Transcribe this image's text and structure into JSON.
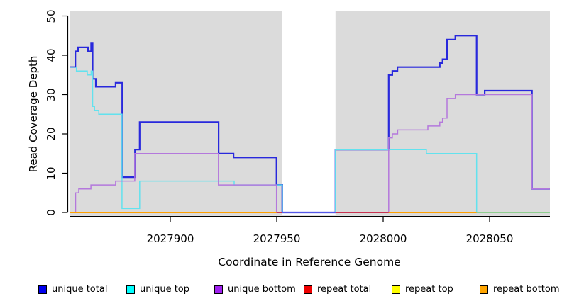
{
  "chart_data": {
    "type": "line",
    "subtype": "step-coverage-plot",
    "title": "",
    "xlabel": "Coordinate in Reference Genome",
    "ylabel": "Read Coverage Depth",
    "xlim": [
      2027852.7,
      2028078.3
    ],
    "ylim": [
      0,
      50
    ],
    "x_ticks": [
      2027900,
      2027950,
      2028000,
      2028050
    ],
    "x_tick_labels": [
      "2027900",
      "2027950",
      "2028000",
      "2028050"
    ],
    "y_ticks": [
      0,
      10,
      20,
      30,
      40,
      50
    ],
    "y_tick_labels": [
      "0",
      "10",
      "20",
      "30",
      "40",
      "50"
    ],
    "plot_bg": "#DBDBDB",
    "grid": false,
    "legend_position": "bottom",
    "masked_region": {
      "x0": 2027952.5,
      "x1": 2027977.6
    },
    "series": [
      {
        "name": "unique total",
        "color": "#2828DC",
        "width": 2.2,
        "steps": [
          [
            2027852.7,
            37
          ],
          [
            2027855.4,
            41
          ],
          [
            2027856.7,
            42
          ],
          [
            2027861.3,
            41
          ],
          [
            2027862.8,
            43
          ],
          [
            2027863.5,
            34
          ],
          [
            2027865,
            32
          ],
          [
            2027874.3,
            33
          ],
          [
            2027877.4,
            9
          ],
          [
            2027883.4,
            16
          ],
          [
            2027885.6,
            23
          ],
          [
            2027922.7,
            15
          ],
          [
            2027929.7,
            14
          ],
          [
            2027949.9,
            7
          ],
          [
            2027952.6,
            0
          ],
          [
            2027977.6,
            16
          ],
          [
            2028002.6,
            35
          ],
          [
            2028004.3,
            36
          ],
          [
            2028006.7,
            37
          ],
          [
            2028026.6,
            38
          ],
          [
            2028027.9,
            39
          ],
          [
            2028030,
            44
          ],
          [
            2028033.9,
            45
          ],
          [
            2028043.9,
            30
          ],
          [
            2028047.7,
            31
          ],
          [
            2028069.9,
            6
          ]
        ]
      },
      {
        "name": "unique top",
        "color": "#62E2EE",
        "width": 1.5,
        "steps": [
          [
            2027852.7,
            37
          ],
          [
            2027855.9,
            36
          ],
          [
            2027861,
            35
          ],
          [
            2027862.8,
            36
          ],
          [
            2027863.5,
            27
          ],
          [
            2027864.4,
            26
          ],
          [
            2027866.4,
            25
          ],
          [
            2027877.3,
            1
          ],
          [
            2027885.6,
            8
          ],
          [
            2027930,
            7
          ],
          [
            2027952.6,
            0
          ],
          [
            2027977.6,
            16
          ],
          [
            2028020.3,
            15
          ],
          [
            2028043.9,
            0
          ]
        ]
      },
      {
        "name": "unique bottom",
        "color": "#B478DC",
        "width": 1.5,
        "steps": [
          [
            2027852.7,
            0
          ],
          [
            2027855.5,
            5
          ],
          [
            2027857,
            6
          ],
          [
            2027862.7,
            7
          ],
          [
            2027874.3,
            8
          ],
          [
            2027883.3,
            15
          ],
          [
            2027922.6,
            7
          ],
          [
            2027949.9,
            0
          ],
          [
            2028002.6,
            19
          ],
          [
            2028004.3,
            20
          ],
          [
            2028006.8,
            21
          ],
          [
            2028021,
            22
          ],
          [
            2028026.6,
            23
          ],
          [
            2028027.9,
            24
          ],
          [
            2028030,
            29
          ],
          [
            2028033.9,
            30
          ],
          [
            2028069.9,
            6
          ]
        ]
      }
    ],
    "baseline_segments": [
      {
        "name": "repeat bottom baseline",
        "color": "#FFA000",
        "x0": 2027852.7,
        "x1": 2027949.9
      },
      {
        "name": "repeat total baseline",
        "color": "#C83250",
        "x0": 2027949.9,
        "x1": 2027952.6
      },
      {
        "name": "masked gap baseline",
        "color": "#5558E8",
        "x0": 2027952.6,
        "x1": 2027977.6
      },
      {
        "name": "repeat total baseline",
        "color": "#C83250",
        "x0": 2027977.6,
        "x1": 2028002.6
      },
      {
        "name": "repeat bottom baseline",
        "color": "#FFA000",
        "x0": 2028002.6,
        "x1": 2028043.9
      },
      {
        "name": "repeat top baseline",
        "color": "#8FCE8F",
        "x0": 2028043.9,
        "x1": 2028078.3
      }
    ],
    "legend": [
      {
        "label": "unique total",
        "color": "#0000EE"
      },
      {
        "label": "unique top",
        "color": "#00FFFF"
      },
      {
        "label": "unique bottom",
        "color": "#A020F0"
      },
      {
        "label": "repeat total",
        "color": "#EE0000"
      },
      {
        "label": "repeat top",
        "color": "#FFFF00"
      },
      {
        "label": "repeat bottom",
        "color": "#FFA500"
      }
    ]
  }
}
